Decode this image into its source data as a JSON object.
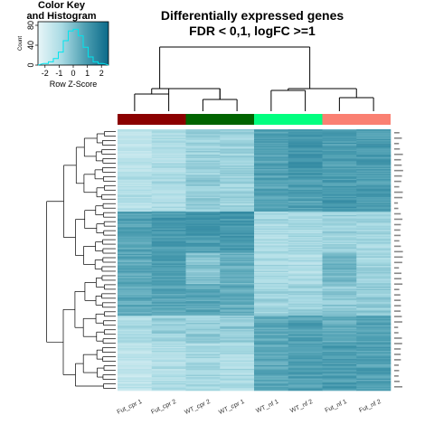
{
  "chart_data": {
    "type": "heatmap",
    "title_line1": "Differentially expressed genes",
    "title_line2": "FDR < 0,1, logFC >=1",
    "color_key": {
      "title_line1": "Color Key",
      "title_line2": "and Histogram",
      "xlabel": "Row Z-Score",
      "ylabel": "Count",
      "x_ticks": [
        "-2",
        "-1",
        "0",
        "1",
        "2"
      ],
      "y_ticks": [
        "0",
        "40",
        "80"
      ],
      "range": [
        -2.5,
        2.5
      ],
      "colors": [
        "#e8f6f8",
        "#aadbe4",
        "#4e9fb2",
        "#0b6a8a"
      ]
    },
    "columns": [
      "Fut_cpr 1",
      "Fut_cpr 2",
      "WT_cpr 2",
      "WT_cpr 1",
      "WT_nf 1",
      "WT_nf 2",
      "Fut_nf 1",
      "Fut_nf 2"
    ],
    "column_groups": [
      {
        "color": "#8b0000"
      },
      {
        "color": "#006400"
      },
      {
        "color": "#00ff7f"
      },
      {
        "color": "#fa8072"
      }
    ],
    "row_blocks": [
      {
        "rows": 38,
        "values": [
          -1.3,
          -1.0,
          -0.6,
          -0.6,
          0.8,
          1.1,
          0.9,
          0.9
        ]
      },
      {
        "rows": 30,
        "values": [
          -1.1,
          -0.9,
          -0.4,
          -0.6,
          0.7,
          0.9,
          1.0,
          0.9
        ]
      },
      {
        "rows": 34,
        "values": [
          0.7,
          1.0,
          1.0,
          1.1,
          -0.9,
          -0.8,
          -0.6,
          -0.7
        ]
      },
      {
        "rows": 26,
        "values": [
          0.6,
          0.9,
          -0.2,
          0.4,
          -0.9,
          -1.0,
          0.2,
          -0.7
        ]
      },
      {
        "rows": 26,
        "values": [
          0.5,
          0.7,
          0.6,
          0.5,
          -0.7,
          -0.6,
          -0.3,
          -0.4
        ]
      },
      {
        "rows": 22,
        "values": [
          -0.9,
          -0.5,
          -0.4,
          -0.3,
          0.5,
          0.8,
          0.4,
          0.7
        ]
      },
      {
        "rows": 40,
        "values": [
          -1.4,
          -1.0,
          -0.8,
          -0.9,
          0.6,
          0.8,
          0.9,
          0.8
        ]
      }
    ]
  }
}
